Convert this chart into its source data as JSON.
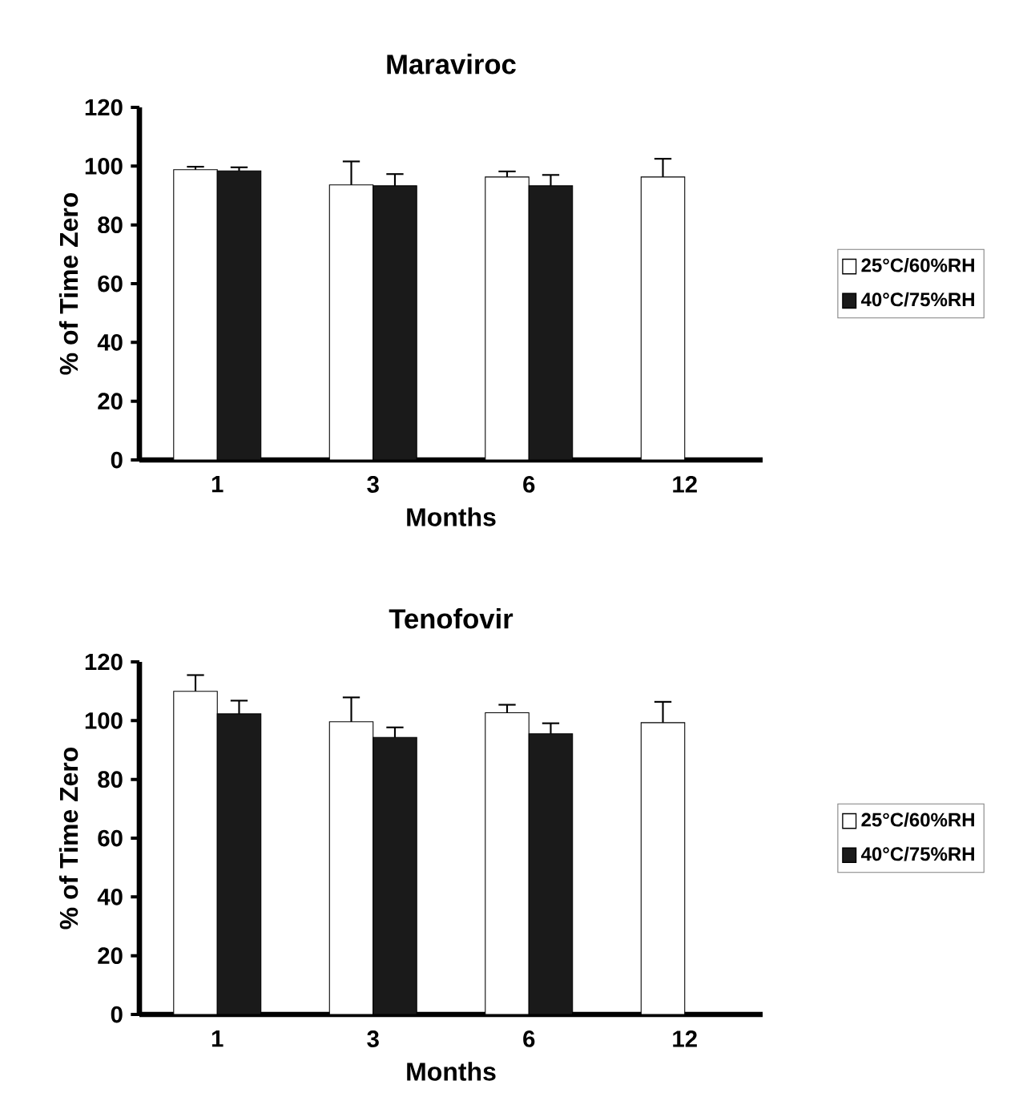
{
  "chart_data": [
    {
      "type": "bar",
      "title": "Maraviroc",
      "xlabel": "Months",
      "ylabel": "% of Time Zero",
      "categories": [
        "1",
        "3",
        "6",
        "12"
      ],
      "ylim": [
        0,
        120
      ],
      "yticks": [
        0,
        20,
        40,
        60,
        80,
        100,
        120
      ],
      "legend": "right",
      "series": [
        {
          "name": "25°C/60%RH",
          "color": "#ffffff",
          "values": [
            98.8,
            93.6,
            96.3,
            96.3
          ],
          "errors": [
            [
              98.8,
              99.8
            ],
            [
              93.6,
              101.6
            ],
            [
              96.3,
              98.2
            ],
            [
              96.3,
              102.5
            ]
          ]
        },
        {
          "name": "40°C/75%RH",
          "color": "#1a1a1a",
          "values": [
            98.4,
            93.3,
            93.3,
            null
          ],
          "errors": [
            [
              98.4,
              99.6
            ],
            [
              93.3,
              97.3
            ],
            [
              93.3,
              97.0
            ],
            null
          ]
        }
      ]
    },
    {
      "type": "bar",
      "title": "Tenofovir",
      "xlabel": "Months",
      "ylabel": "% of Time Zero",
      "categories": [
        "1",
        "3",
        "6",
        "12"
      ],
      "ylim": [
        0,
        120
      ],
      "yticks": [
        0,
        20,
        40,
        60,
        80,
        100,
        120
      ],
      "legend": "right",
      "series": [
        {
          "name": "25°C/60%RH",
          "color": "#ffffff",
          "values": [
            110.0,
            99.6,
            102.7,
            99.3
          ],
          "errors": [
            [
              110.0,
              115.5
            ],
            [
              99.6,
              107.9
            ],
            [
              102.7,
              105.4
            ],
            [
              99.3,
              106.4
            ]
          ]
        },
        {
          "name": "40°C/75%RH",
          "color": "#1a1a1a",
          "values": [
            102.3,
            94.3,
            95.5,
            null
          ],
          "errors": [
            [
              102.3,
              106.8
            ],
            [
              94.3,
              97.7
            ],
            [
              95.5,
              99.1
            ],
            null
          ]
        }
      ]
    }
  ]
}
